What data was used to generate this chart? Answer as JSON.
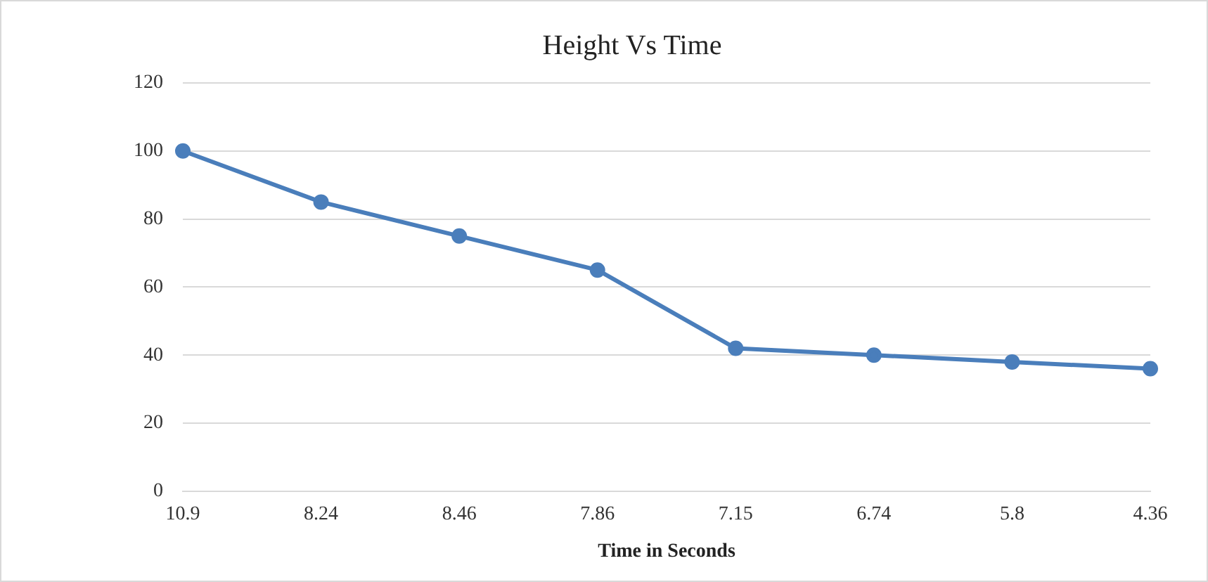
{
  "chart_data": {
    "type": "line",
    "title": "Height Vs Time",
    "xlabel": "Time in Seconds",
    "categories": [
      "10.9",
      "8.24",
      "8.46",
      "7.86",
      "7.15",
      "6.74",
      "5.8",
      "4.36"
    ],
    "series": [
      {
        "color": "#4a7ebb",
        "values": [
          100,
          85,
          75,
          65,
          42,
          40,
          38,
          36
        ]
      }
    ],
    "ylim": [
      0,
      120
    ],
    "yticks": [
      0,
      20,
      40,
      60,
      80,
      100,
      120
    ],
    "grid": "y",
    "legend": false,
    "marker": "circle",
    "line_style": "solid"
  }
}
